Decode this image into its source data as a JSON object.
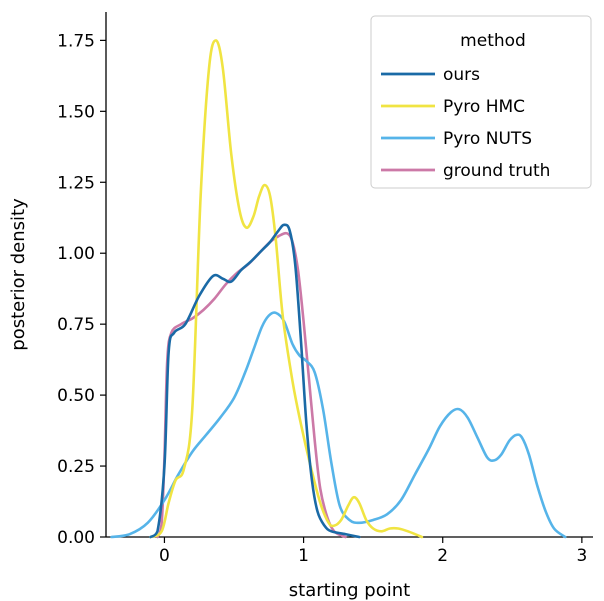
{
  "chart_data": {
    "type": "line",
    "xlabel": "starting point",
    "ylabel": "posterior density",
    "xlim": [
      -0.42,
      3.08
    ],
    "ylim": [
      0,
      1.85
    ],
    "xticks": [
      0,
      1,
      2,
      3
    ],
    "yticks": [
      0.0,
      0.25,
      0.5,
      0.75,
      1.0,
      1.25,
      1.5,
      1.75
    ],
    "xtick_labels": [
      "0",
      "1",
      "2",
      "3"
    ],
    "ytick_labels": [
      "0.00",
      "0.25",
      "0.50",
      "0.75",
      "1.00",
      "1.25",
      "1.50",
      "1.75"
    ],
    "grid": false,
    "legend": {
      "title": "method",
      "position": "top-right"
    },
    "series": [
      {
        "name": "ours",
        "color": "#1a6aa6",
        "points": [
          [
            -0.1,
            0
          ],
          [
            -0.05,
            0.02
          ],
          [
            0,
            0.25
          ],
          [
            0.03,
            0.65
          ],
          [
            0.07,
            0.72
          ],
          [
            0.15,
            0.75
          ],
          [
            0.25,
            0.85
          ],
          [
            0.35,
            0.92
          ],
          [
            0.42,
            0.91
          ],
          [
            0.48,
            0.9
          ],
          [
            0.55,
            0.94
          ],
          [
            0.62,
            0.97
          ],
          [
            0.7,
            1.01
          ],
          [
            0.76,
            1.04
          ],
          [
            0.82,
            1.08
          ],
          [
            0.86,
            1.1
          ],
          [
            0.9,
            1.08
          ],
          [
            0.94,
            0.96
          ],
          [
            0.98,
            0.7
          ],
          [
            1.02,
            0.4
          ],
          [
            1.06,
            0.2
          ],
          [
            1.1,
            0.09
          ],
          [
            1.15,
            0.04
          ],
          [
            1.2,
            0.02
          ],
          [
            1.3,
            0.01
          ],
          [
            1.4,
            0
          ]
        ]
      },
      {
        "name": "Pyro HMC",
        "color": "#f0e442",
        "points": [
          [
            -0.1,
            0
          ],
          [
            -0.02,
            0.02
          ],
          [
            0.03,
            0.12
          ],
          [
            0.08,
            0.2
          ],
          [
            0.14,
            0.24
          ],
          [
            0.2,
            0.45
          ],
          [
            0.26,
            1.2
          ],
          [
            0.32,
            1.65
          ],
          [
            0.37,
            1.75
          ],
          [
            0.42,
            1.65
          ],
          [
            0.48,
            1.35
          ],
          [
            0.54,
            1.15
          ],
          [
            0.59,
            1.09
          ],
          [
            0.64,
            1.13
          ],
          [
            0.68,
            1.2
          ],
          [
            0.72,
            1.24
          ],
          [
            0.76,
            1.2
          ],
          [
            0.8,
            1.05
          ],
          [
            0.85,
            0.78
          ],
          [
            0.92,
            0.55
          ],
          [
            0.98,
            0.4
          ],
          [
            1.05,
            0.25
          ],
          [
            1.12,
            0.12
          ],
          [
            1.18,
            0.05
          ],
          [
            1.22,
            0.04
          ],
          [
            1.27,
            0.06
          ],
          [
            1.32,
            0.11
          ],
          [
            1.36,
            0.14
          ],
          [
            1.4,
            0.12
          ],
          [
            1.45,
            0.06
          ],
          [
            1.5,
            0.03
          ],
          [
            1.56,
            0.02
          ],
          [
            1.62,
            0.03
          ],
          [
            1.68,
            0.03
          ],
          [
            1.75,
            0.02
          ],
          [
            1.85,
            0
          ]
        ]
      },
      {
        "name": "Pyro NUTS",
        "color": "#56b4e9",
        "points": [
          [
            -0.38,
            0
          ],
          [
            -0.25,
            0.01
          ],
          [
            -0.12,
            0.05
          ],
          [
            0.0,
            0.13
          ],
          [
            0.1,
            0.22
          ],
          [
            0.2,
            0.3
          ],
          [
            0.3,
            0.36
          ],
          [
            0.4,
            0.42
          ],
          [
            0.5,
            0.49
          ],
          [
            0.58,
            0.58
          ],
          [
            0.64,
            0.66
          ],
          [
            0.7,
            0.74
          ],
          [
            0.75,
            0.78
          ],
          [
            0.8,
            0.79
          ],
          [
            0.86,
            0.76
          ],
          [
            0.92,
            0.68
          ],
          [
            0.97,
            0.64
          ],
          [
            1.02,
            0.62
          ],
          [
            1.08,
            0.58
          ],
          [
            1.14,
            0.45
          ],
          [
            1.2,
            0.26
          ],
          [
            1.26,
            0.11
          ],
          [
            1.33,
            0.06
          ],
          [
            1.4,
            0.05
          ],
          [
            1.5,
            0.06
          ],
          [
            1.6,
            0.08
          ],
          [
            1.7,
            0.13
          ],
          [
            1.8,
            0.22
          ],
          [
            1.9,
            0.31
          ],
          [
            1.98,
            0.39
          ],
          [
            2.06,
            0.44
          ],
          [
            2.12,
            0.45
          ],
          [
            2.18,
            0.42
          ],
          [
            2.25,
            0.35
          ],
          [
            2.32,
            0.28
          ],
          [
            2.37,
            0.27
          ],
          [
            2.42,
            0.29
          ],
          [
            2.48,
            0.34
          ],
          [
            2.53,
            0.36
          ],
          [
            2.57,
            0.35
          ],
          [
            2.62,
            0.29
          ],
          [
            2.68,
            0.18
          ],
          [
            2.74,
            0.09
          ],
          [
            2.8,
            0.03
          ],
          [
            2.88,
            0
          ]
        ]
      },
      {
        "name": "ground truth",
        "color": "#cc79a7",
        "points": [
          [
            -0.05,
            0
          ],
          [
            -0.02,
            0.05
          ],
          [
            0,
            0.28
          ],
          [
            0.02,
            0.62
          ],
          [
            0.05,
            0.72
          ],
          [
            0.12,
            0.75
          ],
          [
            0.2,
            0.77
          ],
          [
            0.28,
            0.8
          ],
          [
            0.36,
            0.84
          ],
          [
            0.44,
            0.89
          ],
          [
            0.52,
            0.93
          ],
          [
            0.6,
            0.96
          ],
          [
            0.68,
            1.0
          ],
          [
            0.76,
            1.04
          ],
          [
            0.82,
            1.06
          ],
          [
            0.88,
            1.07
          ],
          [
            0.92,
            1.04
          ],
          [
            0.96,
            0.94
          ],
          [
            1.0,
            0.76
          ],
          [
            1.04,
            0.55
          ],
          [
            1.08,
            0.34
          ],
          [
            1.12,
            0.17
          ],
          [
            1.17,
            0.07
          ],
          [
            1.22,
            0.02
          ],
          [
            1.3,
            0
          ]
        ]
      }
    ]
  }
}
